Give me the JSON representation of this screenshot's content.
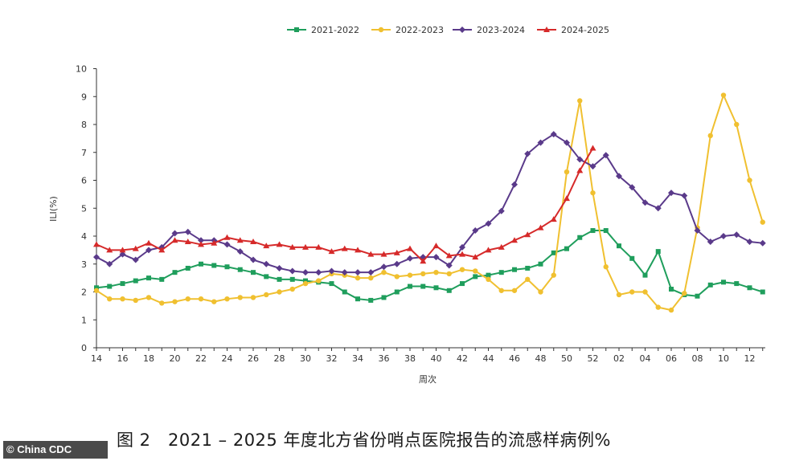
{
  "chart_data": {
    "type": "line",
    "xlabel": "周次",
    "ylabel": "ILI(%)",
    "ylim": [
      0,
      10
    ],
    "yticks": [
      "0",
      "1",
      "2",
      "3",
      "4",
      "5",
      "6",
      "7",
      "8",
      "9",
      "10"
    ],
    "weeks": [
      "14",
      "15",
      "16",
      "17",
      "18",
      "19",
      "20",
      "21",
      "22",
      "23",
      "24",
      "25",
      "26",
      "27",
      "28",
      "29",
      "30",
      "31",
      "32",
      "33",
      "34",
      "35",
      "36",
      "37",
      "38",
      "39",
      "40",
      "41",
      "42",
      "43",
      "44",
      "45",
      "46",
      "47",
      "48",
      "49",
      "50",
      "51",
      "52",
      "01",
      "02",
      "03",
      "04",
      "05",
      "06",
      "07",
      "08",
      "09",
      "10",
      "11",
      "12",
      "13"
    ],
    "xtick_labels": [
      "14",
      "16",
      "18",
      "20",
      "22",
      "24",
      "26",
      "28",
      "30",
      "32",
      "34",
      "36",
      "38",
      "40",
      "42",
      "44",
      "46",
      "48",
      "50",
      "52",
      "02",
      "04",
      "06",
      "08",
      "10",
      "12"
    ],
    "grid": false,
    "legend_position": "top",
    "series": [
      {
        "name": "2021-2022",
        "color": "#1f9e5c",
        "marker": "square",
        "values": [
          2.15,
          2.2,
          2.3,
          2.4,
          2.5,
          2.45,
          2.7,
          2.85,
          3.0,
          2.95,
          2.9,
          2.8,
          2.7,
          2.55,
          2.45,
          2.45,
          2.4,
          2.35,
          2.3,
          2.0,
          1.75,
          1.7,
          1.8,
          2.0,
          2.2,
          2.2,
          2.15,
          2.05,
          2.3,
          2.55,
          2.6,
          2.7,
          2.8,
          2.85,
          3.0,
          3.4,
          3.55,
          3.95,
          4.2,
          4.2,
          3.65,
          3.2,
          2.6,
          3.45,
          2.1,
          1.9,
          1.85,
          2.25,
          2.35,
          2.3,
          2.15,
          2.0
        ]
      },
      {
        "name": "2022-2023",
        "color": "#f0c030",
        "marker": "circle",
        "values": [
          2.05,
          1.75,
          1.75,
          1.7,
          1.8,
          1.6,
          1.65,
          1.75,
          1.75,
          1.65,
          1.75,
          1.8,
          1.8,
          1.9,
          2.0,
          2.1,
          2.3,
          2.4,
          2.65,
          2.6,
          2.5,
          2.5,
          2.7,
          2.55,
          2.6,
          2.65,
          2.7,
          2.65,
          2.8,
          2.75,
          2.45,
          2.05,
          2.05,
          2.45,
          2.0,
          2.6,
          6.3,
          8.85,
          5.55,
          2.9,
          1.9,
          2.0,
          2.0,
          1.45,
          1.35,
          1.95,
          4.3,
          7.6,
          9.05,
          8.0,
          6.0,
          4.5
        ]
      },
      {
        "name": "2023-2024",
        "color": "#5a3a8a",
        "marker": "diamond",
        "values": [
          3.25,
          3.0,
          3.35,
          3.15,
          3.5,
          3.6,
          4.1,
          4.15,
          3.85,
          3.85,
          3.7,
          3.45,
          3.15,
          3.0,
          2.85,
          2.75,
          2.7,
          2.7,
          2.75,
          2.7,
          2.7,
          2.7,
          2.9,
          3.0,
          3.2,
          3.25,
          3.25,
          2.95,
          3.6,
          4.2,
          4.45,
          4.9,
          5.85,
          6.95,
          7.35,
          7.65,
          7.35,
          6.75,
          6.5,
          6.9,
          6.15,
          5.75,
          5.2,
          5.0,
          5.55,
          5.45,
          4.2,
          3.8,
          4.0,
          4.05,
          3.8,
          3.75
        ]
      },
      {
        "name": "2024-2025",
        "color": "#d62a2a",
        "marker": "triangle",
        "values": [
          3.7,
          3.5,
          3.5,
          3.55,
          3.75,
          3.5,
          3.85,
          3.8,
          3.7,
          3.75,
          3.95,
          3.85,
          3.8,
          3.65,
          3.7,
          3.6,
          3.6,
          3.6,
          3.45,
          3.55,
          3.5,
          3.35,
          3.35,
          3.4,
          3.55,
          3.1,
          3.65,
          3.3,
          3.35,
          3.25,
          3.5,
          3.6,
          3.85,
          4.05,
          4.3,
          4.6,
          5.35,
          6.35,
          7.15
        ]
      }
    ]
  },
  "caption": "图 2　2021 – 2025 年度北方省份哨点医院报告的流感样病例%",
  "credit": "© China CDC"
}
